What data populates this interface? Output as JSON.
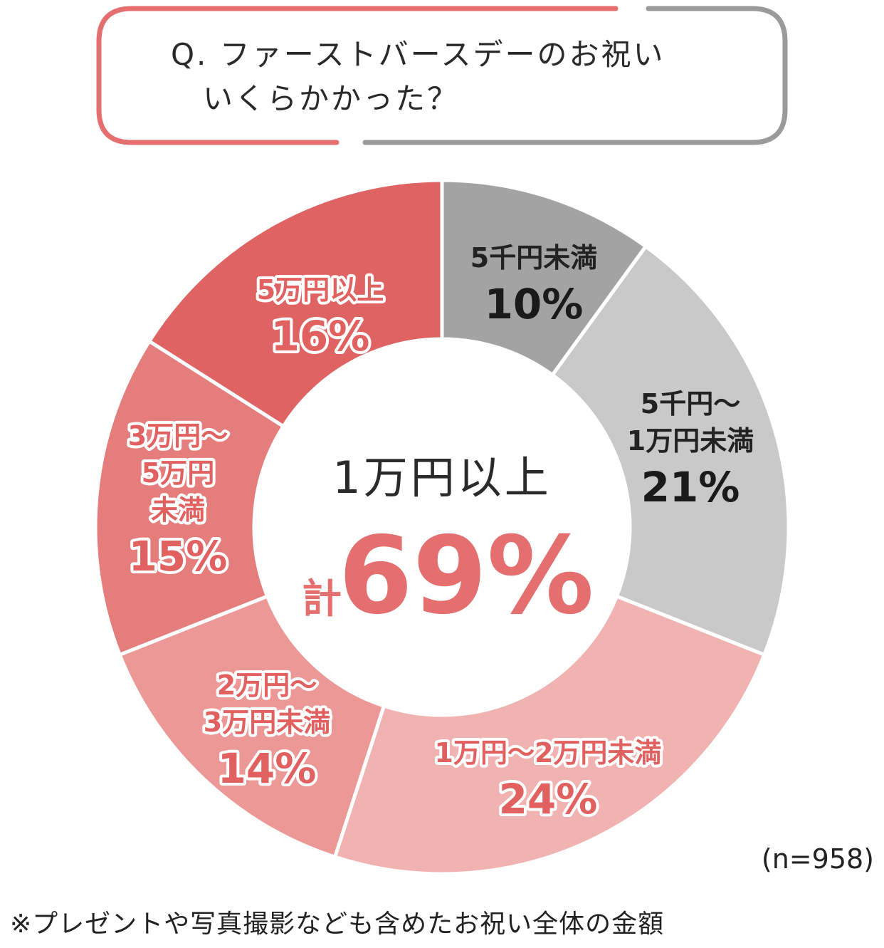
{
  "question": {
    "text": "Q. ファーストバースデーのお祝い\n　いくらかかった？"
  },
  "colors": {
    "accent": "#e56f6f",
    "gray_frame": "#9a9a9a"
  },
  "chart_data": {
    "type": "pie",
    "donut": true,
    "unit": "%",
    "slices": [
      {
        "label_lines": [
          "5千円未満"
        ],
        "value": 10,
        "display": "10%",
        "color": "#a3a3a3",
        "text_style": "dark"
      },
      {
        "label_lines": [
          "5千円～",
          "1万円未満"
        ],
        "value": 21,
        "display": "21%",
        "color": "#c9c9c9",
        "text_style": "dark"
      },
      {
        "label_lines": [
          "1万円～2万円未満"
        ],
        "value": 24,
        "display": "24%",
        "color": "#f1b3b1",
        "text_style": "light"
      },
      {
        "label_lines": [
          "2万円～",
          "3万円未満"
        ],
        "value": 14,
        "display": "14%",
        "color": "#ec9896",
        "text_style": "light"
      },
      {
        "label_lines": [
          "3万円～",
          "5万円",
          "未満"
        ],
        "value": 15,
        "display": "15%",
        "color": "#e57d7c",
        "text_style": "light"
      },
      {
        "label_lines": [
          "5万円以上"
        ],
        "value": 16,
        "display": "16%",
        "color": "#e06364",
        "text_style": "light"
      }
    ],
    "center": {
      "title": "1万円以上",
      "prefix": "計",
      "value": "69%"
    }
  },
  "sample": "(n=958)",
  "footnote": "※プレゼントや写真撮影なども含めたお祝い全体の金額"
}
